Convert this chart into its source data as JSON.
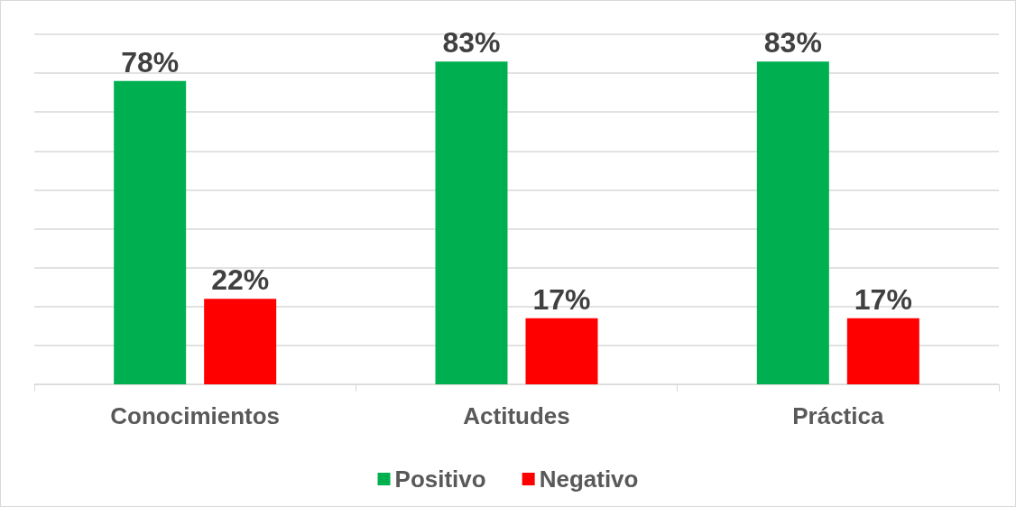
{
  "chart_data": {
    "type": "bar",
    "categories": [
      "Conocimientos",
      "Actitudes",
      "Práctica"
    ],
    "series": [
      {
        "name": "Positivo",
        "color": "#00b050",
        "values": [
          78,
          83,
          83
        ],
        "value_labels": [
          "78%",
          "83%",
          "83%"
        ]
      },
      {
        "name": "Negativo",
        "color": "#ff0000",
        "values": [
          22,
          17,
          17
        ],
        "value_labels": [
          "22%",
          "17%",
          "17%"
        ]
      }
    ],
    "ylim": [
      0,
      90
    ],
    "yticks": [
      {
        "value": 0,
        "label": null
      },
      {
        "value": 10,
        "label": null
      },
      {
        "value": 20,
        "label": null
      },
      {
        "value": 30,
        "label": null
      },
      {
        "value": 40,
        "label": null
      },
      {
        "value": 50,
        "label": null
      },
      {
        "value": 60,
        "label": null
      },
      {
        "value": 70,
        "label": null
      },
      {
        "value": 80,
        "label": null
      },
      {
        "value": 90,
        "label": null
      }
    ],
    "grid": "y",
    "legend": "bottom",
    "tick_labels": "x"
  }
}
